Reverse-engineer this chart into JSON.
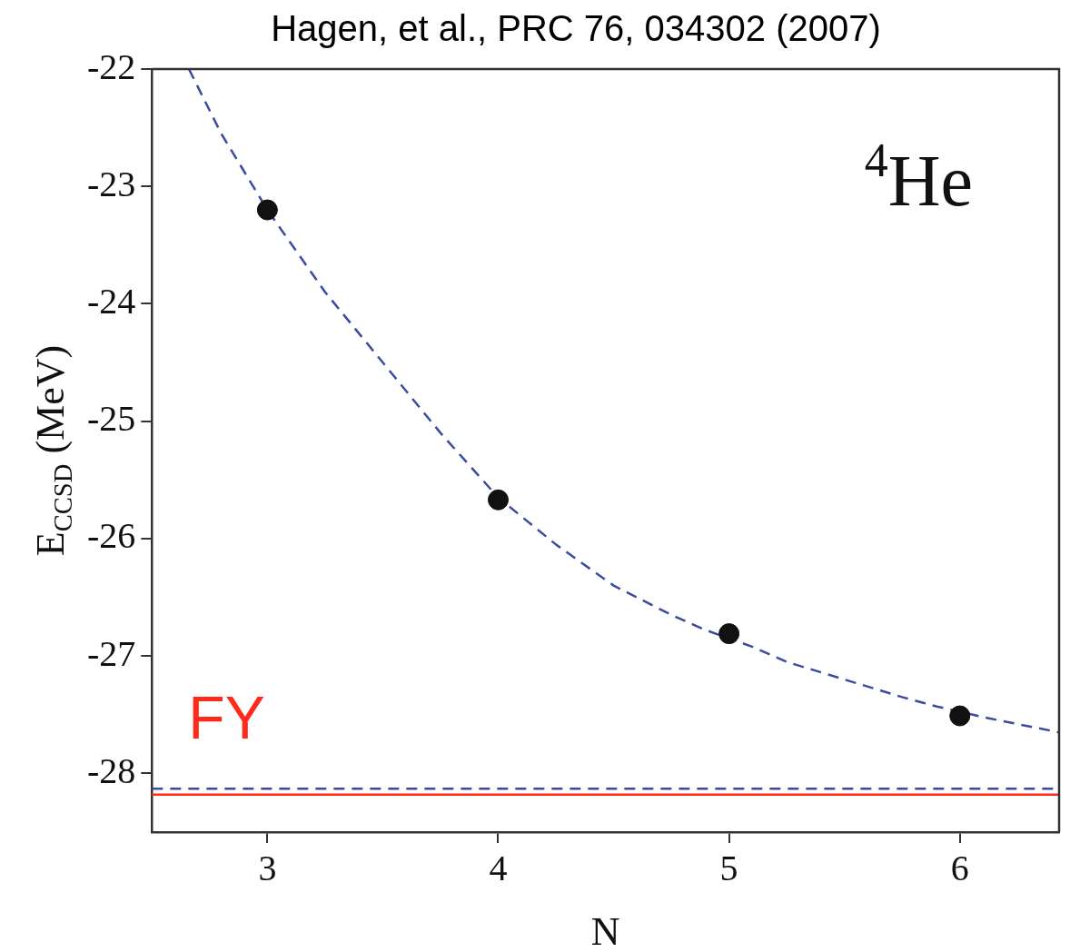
{
  "chart_data": {
    "type": "scatter",
    "title": "Hagen, et al., PRC 76, 034302 (2007)",
    "xlabel": "N",
    "ylabel": "E$_{CCSD}$ (MeV)",
    "annotations": [
      "$^{4}$He"
    ],
    "xlim": [
      2.5,
      6.43
    ],
    "xticks": [
      3,
      4,
      5,
      6
    ],
    "ylim": [
      -28.5,
      -22
    ],
    "yticks": [
      -28,
      -27,
      -26,
      -25,
      -24,
      -23,
      -22
    ],
    "legend": false,
    "grid": false,
    "series": [
      {
        "color": "#111111",
        "marker": "circle",
        "x": [
          3,
          4,
          5,
          6
        ],
        "values": [
          -23.2,
          -25.67,
          -26.81,
          -27.51
        ]
      },
      {
        "type": "line",
        "color": "#3b4ba0",
        "marker": "none",
        "line_style": "dashed",
        "x": [
          2.66,
          2.8,
          3,
          3.25,
          3.5,
          3.75,
          4,
          4.25,
          4.5,
          4.75,
          4.9,
          5.1,
          5.25,
          5.5,
          5.75,
          5.9,
          6.1,
          6.25,
          6.43
        ],
        "values": [
          -22,
          -22.55,
          -23.2,
          -23.9,
          -24.5,
          -25.1,
          -25.65,
          -26.05,
          -26.4,
          -26.65,
          -26.78,
          -26.92,
          -27.05,
          -27.2,
          -27.35,
          -27.43,
          -27.52,
          -27.58,
          -27.65
        ]
      }
    ],
    "ref_lines": [
      {
        "axis": "y",
        "value": -28.13,
        "color": "#3b4ba0",
        "line_style": "dashed"
      },
      {
        "axis": "y",
        "value": -28.18,
        "color": "#ff2a1a",
        "line_style": "solid",
        "label": "FY"
      }
    ]
  }
}
